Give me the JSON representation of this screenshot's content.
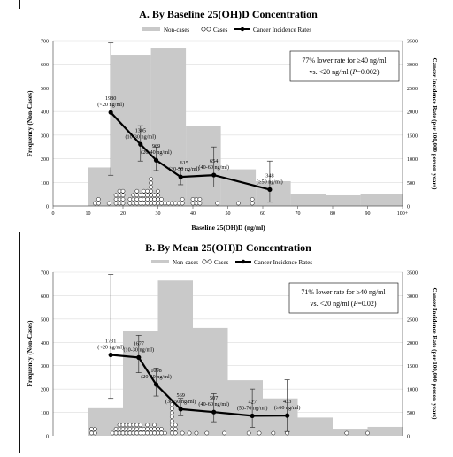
{
  "colors": {
    "histogram": "#c9c9c9",
    "incidence_line": "#000000",
    "cases_marker_stroke": "#000000",
    "cases_marker_fill": "#ffffff",
    "gridline": "#dcdcdc",
    "frame_rule": "#111111"
  },
  "legend_labels": {
    "noncases": "Non-cases",
    "cases": "Cases",
    "rates": "Cancer Incidence Rates"
  },
  "chart_data": [
    {
      "id": "A",
      "type": "bar",
      "title": "A. By Baseline 25(OH)D Concentration",
      "xlabel": "Baseline 25(OH)D (ng/ml)",
      "ylabel": "Frequency (Non-Cases)",
      "y2label": "Cancer Incidence Rate (per 100,000 person-years)",
      "xlim": [
        0,
        100
      ],
      "ylim": [
        0,
        700
      ],
      "y2lim": [
        0,
        3500
      ],
      "x_ticks": [
        "0",
        "10",
        "20",
        "30",
        "40",
        "50",
        "60",
        "70",
        "80",
        "90",
        "100+"
      ],
      "y_ticks": [
        "0",
        "100",
        "200",
        "300",
        "400",
        "500",
        "600",
        "700"
      ],
      "y2_ticks": [
        "0",
        "500",
        "1000",
        "1500",
        "2000",
        "2500",
        "3000",
        "3500"
      ],
      "grid": true,
      "legend_position": "top",
      "annotation": {
        "line1": "77% lower rate for ≥40 ng/ml",
        "line2_pre": "vs. <20 ng/ml (",
        "line2_p": "P",
        "line2_post": "=0.002)"
      },
      "histogram": {
        "name": "Non-cases",
        "bins": [
          {
            "x0": 10,
            "x1": 16.5,
            "value": 163
          },
          {
            "x0": 16.5,
            "x1": 28,
            "value": 640
          },
          {
            "x0": 28,
            "x1": 38,
            "value": 670
          },
          {
            "x0": 38,
            "x1": 48,
            "value": 340
          },
          {
            "x0": 48,
            "x1": 58,
            "value": 155
          },
          {
            "x0": 58,
            "x1": 68,
            "value": 105
          },
          {
            "x0": 68,
            "x1": 78,
            "value": 52
          },
          {
            "x0": 78,
            "x1": 88,
            "value": 45
          },
          {
            "x0": 88,
            "x1": 100,
            "value": 52
          }
        ]
      },
      "cases": {
        "name": "Cases",
        "columns": [
          {
            "x": 12,
            "count": 1
          },
          {
            "x": 13,
            "count": 2
          },
          {
            "x": 16,
            "count": 1
          },
          {
            "x": 18,
            "count": 3
          },
          {
            "x": 19,
            "count": 4
          },
          {
            "x": 20,
            "count": 4
          },
          {
            "x": 22,
            "count": 2
          },
          {
            "x": 23,
            "count": 3
          },
          {
            "x": 24,
            "count": 4
          },
          {
            "x": 25,
            "count": 3
          },
          {
            "x": 26,
            "count": 4
          },
          {
            "x": 27,
            "count": 4
          },
          {
            "x": 28,
            "count": 7
          },
          {
            "x": 29,
            "count": 3
          },
          {
            "x": 30,
            "count": 4
          },
          {
            "x": 31,
            "count": 2
          },
          {
            "x": 32,
            "count": 1
          },
          {
            "x": 33,
            "count": 1
          },
          {
            "x": 34,
            "count": 1
          },
          {
            "x": 35,
            "count": 1
          },
          {
            "x": 36,
            "count": 1
          },
          {
            "x": 37,
            "count": 2
          },
          {
            "x": 40,
            "count": 2
          },
          {
            "x": 41,
            "count": 2
          },
          {
            "x": 42,
            "count": 2
          },
          {
            "x": 47,
            "count": 1
          },
          {
            "x": 53,
            "count": 1
          },
          {
            "x": 57,
            "count": 2
          }
        ]
      },
      "series": [
        {
          "name": "Cancer Incidence Rates",
          "points": [
            {
              "x": 16.5,
              "y": 1980,
              "label": "1980",
              "range": "(<20 ng/ml)",
              "err": [
                650,
                3450
              ]
            },
            {
              "x": 25,
              "y": 1305,
              "label": "1305",
              "range": "(10-30 ng/ml)",
              "err": [
                950,
                1700
              ]
            },
            {
              "x": 29.5,
              "y": 969,
              "label": "969",
              "range": "(20-40 ng/ml)",
              "err": [
                750,
                1250
              ]
            },
            {
              "x": 36.5,
              "y": 615,
              "label": "615",
              "range": "(30-50 ng/ml)",
              "err": [
                450,
                800
              ]
            },
            {
              "x": 46,
              "y": 654,
              "label": "654",
              "range": "(40-60 ng/ml)",
              "err": [
                400,
                1250
              ]
            },
            {
              "x": 62,
              "y": 348,
              "label": "348",
              "range": "(≥50 ng/ml)",
              "err": [
                80,
                950
              ]
            }
          ]
        }
      ]
    },
    {
      "id": "B",
      "type": "bar",
      "title": "B. By Mean 25(OH)D Concentration",
      "ylabel": "Frequency (Non-Cases)",
      "y2label": "Cancer Incidence Rate (per 100,000 person-years)",
      "xlim": [
        0,
        100
      ],
      "ylim": [
        0,
        700
      ],
      "y2lim": [
        0,
        3500
      ],
      "y_ticks": [
        "0",
        "100",
        "200",
        "300",
        "400",
        "500",
        "600",
        "700"
      ],
      "y2_ticks": [
        "0",
        "500",
        "1000",
        "1500",
        "2000",
        "2500",
        "3000",
        "3500"
      ],
      "grid": true,
      "legend_position": "top",
      "annotation": {
        "line1": "71% lower rate for ≥40 ng/ml",
        "line2_pre": "vs. <20 ng/ml (",
        "line2_p": "P",
        "line2_post": "=0.02)"
      },
      "histogram": {
        "name": "Non-cases",
        "bins": [
          {
            "x0": 10,
            "x1": 20,
            "value": 118
          },
          {
            "x0": 20,
            "x1": 30,
            "value": 450
          },
          {
            "x0": 30,
            "x1": 40,
            "value": 665
          },
          {
            "x0": 40,
            "x1": 50,
            "value": 462
          },
          {
            "x0": 50,
            "x1": 60,
            "value": 238
          },
          {
            "x0": 60,
            "x1": 70,
            "value": 160
          },
          {
            "x0": 70,
            "x1": 80,
            "value": 78
          },
          {
            "x0": 80,
            "x1": 90,
            "value": 30
          },
          {
            "x0": 90,
            "x1": 100,
            "value": 38
          }
        ]
      },
      "cases": {
        "name": "Cases",
        "columns": [
          {
            "x": 11,
            "count": 2
          },
          {
            "x": 12,
            "count": 2
          },
          {
            "x": 17,
            "count": 1
          },
          {
            "x": 18,
            "count": 2
          },
          {
            "x": 19,
            "count": 3
          },
          {
            "x": 20,
            "count": 3
          },
          {
            "x": 21,
            "count": 3
          },
          {
            "x": 22,
            "count": 3
          },
          {
            "x": 23,
            "count": 3
          },
          {
            "x": 24,
            "count": 3
          },
          {
            "x": 25,
            "count": 3
          },
          {
            "x": 26,
            "count": 2
          },
          {
            "x": 27,
            "count": 3
          },
          {
            "x": 28,
            "count": 2
          },
          {
            "x": 29,
            "count": 3
          },
          {
            "x": 30,
            "count": 2
          },
          {
            "x": 31,
            "count": 2
          },
          {
            "x": 32,
            "count": 1
          },
          {
            "x": 34,
            "count": 8
          },
          {
            "x": 35,
            "count": 3
          },
          {
            "x": 37,
            "count": 1
          },
          {
            "x": 39,
            "count": 1
          },
          {
            "x": 41,
            "count": 1
          },
          {
            "x": 44,
            "count": 1
          },
          {
            "x": 49,
            "count": 1
          },
          {
            "x": 56,
            "count": 1
          },
          {
            "x": 59,
            "count": 1
          },
          {
            "x": 63,
            "count": 1
          },
          {
            "x": 67,
            "count": 1
          },
          {
            "x": 84,
            "count": 1
          },
          {
            "x": 90,
            "count": 1
          }
        ]
      },
      "series": [
        {
          "name": "Cancer Incidence Rates",
          "points": [
            {
              "x": 16.5,
              "y": 1731,
              "label": "1731",
              "range": "(<20 ng/ml)",
              "err": [
                800,
                3450
              ]
            },
            {
              "x": 24.5,
              "y": 1677,
              "label": "1677",
              "range": "(10-30 ng/ml)",
              "err": [
                1350,
                2150
              ]
            },
            {
              "x": 29.5,
              "y": 1098,
              "label": "1098",
              "range": "(20-40 ng/ml)",
              "err": [
                850,
                1450
              ]
            },
            {
              "x": 36.5,
              "y": 569,
              "label": "569",
              "range": "(30-50 ng/ml)",
              "err": [
                430,
                800
              ]
            },
            {
              "x": 46,
              "y": 507,
              "label": "507",
              "range": "(40-60 ng/ml)",
              "err": [
                300,
                900
              ]
            },
            {
              "x": 57,
              "y": 427,
              "label": "427",
              "range": "(50-70 ng/ml)",
              "err": [
                180,
                1000
              ]
            },
            {
              "x": 67,
              "y": 433,
              "label": "433",
              "range": "(≥60 ng/ml)",
              "err": [
                90,
                1200
              ]
            }
          ]
        }
      ]
    }
  ]
}
